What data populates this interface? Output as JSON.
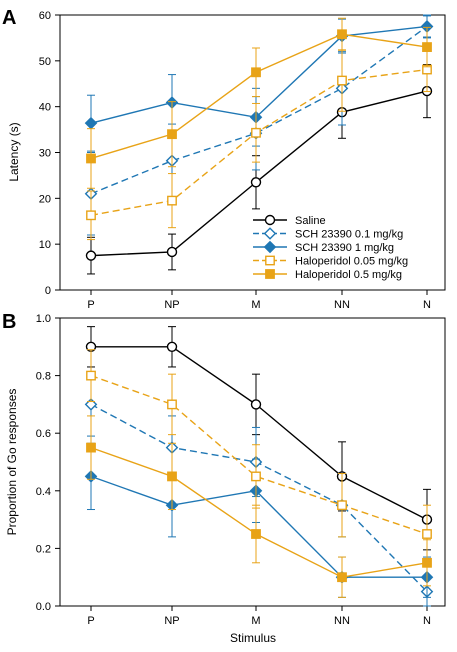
{
  "chart_data": [
    {
      "panel_label": "A",
      "type": "line",
      "title": "",
      "xlabel": "",
      "ylabel": "Latency (s)",
      "categories": [
        "P",
        "NP",
        "M",
        "NN",
        "N"
      ],
      "ylim": [
        0,
        60
      ],
      "yticks": [
        0,
        10,
        20,
        30,
        40,
        50,
        60
      ],
      "grid": false,
      "legend_position": "bottom-right",
      "series": [
        {
          "name": "Saline",
          "color": "#000000",
          "dash": "solid",
          "marker": "circle-open",
          "values": [
            7.5,
            8.3,
            23.5,
            38.8,
            43.4
          ],
          "errors": [
            4.0,
            3.9,
            5.8,
            5.7,
            5.8
          ]
        },
        {
          "name": "SCH 23390 0.1 mg/kg",
          "color": "#1F77B4",
          "dash": "dashed",
          "marker": "diamond-open",
          "values": [
            21.0,
            28.2,
            34.2,
            44.0,
            57.5
          ],
          "errors": [
            9.0,
            8.0,
            8.0,
            8.0,
            2.5
          ]
        },
        {
          "name": "SCH 23390 1 mg/kg",
          "color": "#1F77B4",
          "dash": "solid",
          "marker": "diamond-filled",
          "values": [
            36.4,
            40.9,
            37.7,
            55.4,
            57.5
          ],
          "errors": [
            6.1,
            6.1,
            6.3,
            3.7,
            2.3
          ]
        },
        {
          "name": "Haloperidol 0.05 mg/kg",
          "color": "#E8A317",
          "dash": "dashed",
          "marker": "square-open",
          "values": [
            16.3,
            19.5,
            34.3,
            45.7,
            48.1
          ],
          "errors": [
            5.3,
            5.9,
            6.4,
            6.7,
            4.8
          ]
        },
        {
          "name": "Haloperidol 0.5 mg/kg",
          "color": "#E8A317",
          "dash": "solid",
          "marker": "square-filled",
          "values": [
            28.7,
            34.0,
            47.5,
            55.8,
            53.0
          ],
          "errors": [
            6.5,
            7.1,
            5.3,
            3.5,
            4.3
          ]
        }
      ]
    },
    {
      "panel_label": "B",
      "type": "line",
      "title": "",
      "xlabel": "Stimulus",
      "ylabel": "Proportion of Go responses",
      "categories": [
        "P",
        "NP",
        "M",
        "NN",
        "N"
      ],
      "ylim": [
        0,
        1.0
      ],
      "yticks": [
        0.0,
        0.2,
        0.4,
        0.6,
        0.8,
        1.0
      ],
      "ytick_labels": [
        "0.0",
        "0.2",
        "0.4",
        "0.6",
        "0.8",
        "1.0"
      ],
      "grid": false,
      "series": [
        {
          "name": "Saline",
          "color": "#000000",
          "dash": "solid",
          "marker": "circle-open",
          "values": [
            0.9,
            0.9,
            0.7,
            0.45,
            0.3
          ],
          "errors": [
            0.07,
            0.07,
            0.105,
            0.12,
            0.105
          ]
        },
        {
          "name": "SCH 23390 0.1 mg/kg",
          "color": "#1F77B4",
          "dash": "dashed",
          "marker": "diamond-open",
          "values": [
            0.7,
            0.55,
            0.5,
            0.35,
            0.05
          ],
          "errors": [
            0.11,
            0.11,
            0.12,
            0.11,
            0.05
          ]
        },
        {
          "name": "SCH 23390 1 mg/kg",
          "color": "#1F77B4",
          "dash": "solid",
          "marker": "diamond-filled",
          "values": [
            0.45,
            0.35,
            0.4,
            0.1,
            0.1
          ],
          "errors": [
            0.115,
            0.11,
            0.11,
            0.07,
            0.07
          ]
        },
        {
          "name": "Haloperidol 0.05 mg/kg",
          "color": "#E8A317",
          "dash": "dashed",
          "marker": "square-open",
          "values": [
            0.8,
            0.7,
            0.45,
            0.35,
            0.25
          ],
          "errors": [
            0.09,
            0.105,
            0.11,
            0.11,
            0.1
          ]
        },
        {
          "name": "Haloperidol 0.5 mg/kg",
          "color": "#E8A317",
          "dash": "solid",
          "marker": "square-filled",
          "values": [
            0.55,
            0.45,
            0.25,
            0.1,
            0.15
          ],
          "errors": [
            0.11,
            0.115,
            0.1,
            0.07,
            0.08
          ]
        }
      ]
    }
  ]
}
